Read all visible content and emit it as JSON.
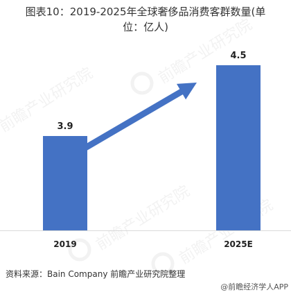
{
  "title_line1": "图表10：2019-2025年全球奢侈品消费客群数量(单",
  "title_line2": "位：亿人)",
  "source": "资料来源：Bain Company 前瞻产业研究院整理",
  "credit": "@前瞻经济学人APP",
  "watermark": "前瞻产业研究院",
  "colors": {
    "bar": "#4472C4",
    "arrow": "#4472C4",
    "axis": "#D9D9D9"
  },
  "chart_data": {
    "type": "bar",
    "title": "图表10：2019-2025年全球奢侈品消费客群数量(单位：亿人)",
    "categories": [
      "2019",
      "2025E"
    ],
    "values": [
      3.9,
      4.5
    ],
    "value_labels": [
      "3.9",
      "4.5"
    ],
    "xlabel": "",
    "ylabel": "",
    "ylim": [
      3.1,
      4.7
    ],
    "grid": false,
    "legend": "none",
    "annotation": "upward trend arrow"
  }
}
